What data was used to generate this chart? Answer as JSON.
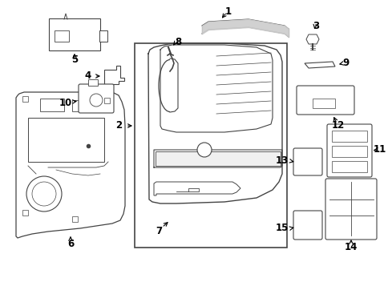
{
  "background_color": "#ffffff",
  "line_color": "#444444",
  "figsize": [
    4.85,
    3.57
  ],
  "dpi": 100
}
